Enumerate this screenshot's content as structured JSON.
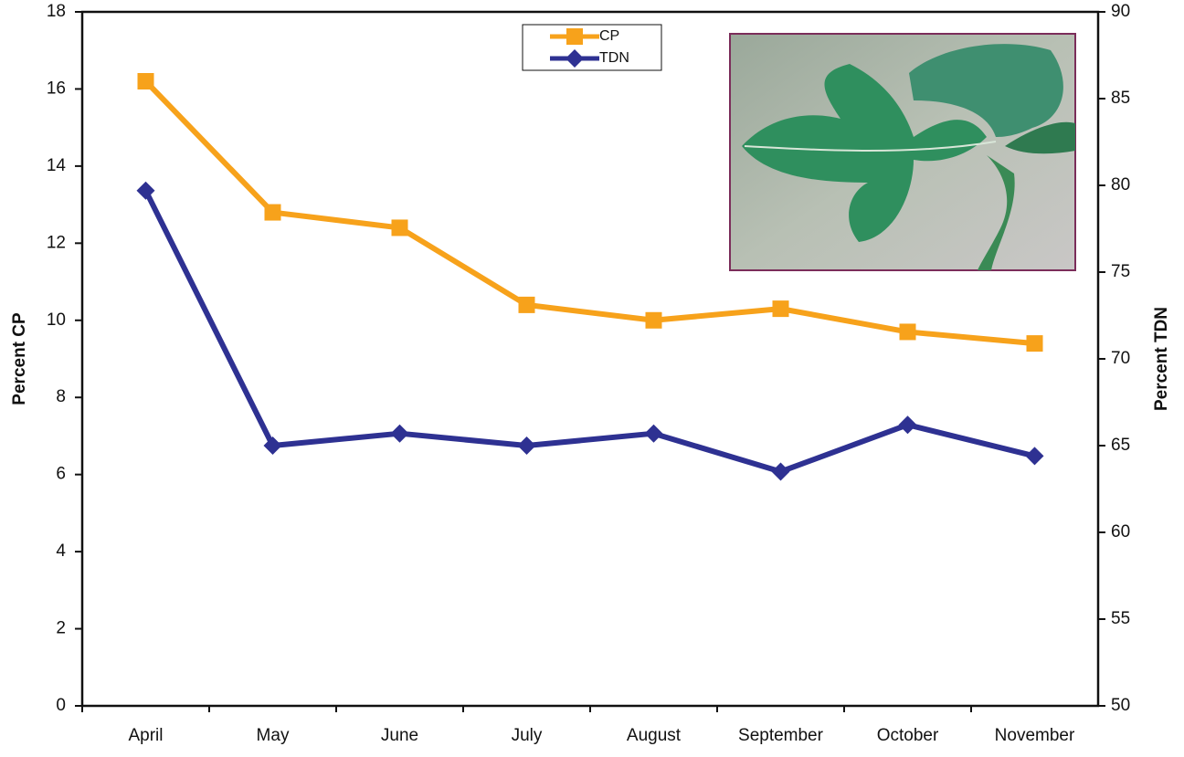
{
  "chart_data": {
    "type": "line",
    "categories": [
      "April",
      "May",
      "June",
      "July",
      "August",
      "September",
      "October",
      "November"
    ],
    "series": [
      {
        "name": "CP",
        "color": "#f7a21b",
        "values": [
          16.2,
          12.8,
          12.4,
          10.4,
          10.0,
          10.3,
          9.7,
          9.4
        ]
      },
      {
        "name": "TDN",
        "color": "#2e3192",
        "axis": "y2",
        "values": [
          79.7,
          65.0,
          65.7,
          65.0,
          65.7,
          63.5,
          66.2,
          64.4
        ]
      }
    ],
    "y_label": "Percent CP",
    "y2_label": "Percent TDN",
    "ylim": [
      0,
      18
    ],
    "yticks": [
      0,
      2,
      4,
      6,
      8,
      10,
      12,
      14,
      16,
      18
    ],
    "y2lim": [
      50,
      90
    ],
    "y2ticks": [
      50,
      55,
      60,
      65,
      70,
      75,
      80,
      85,
      90
    ],
    "legend": "top-center"
  }
}
